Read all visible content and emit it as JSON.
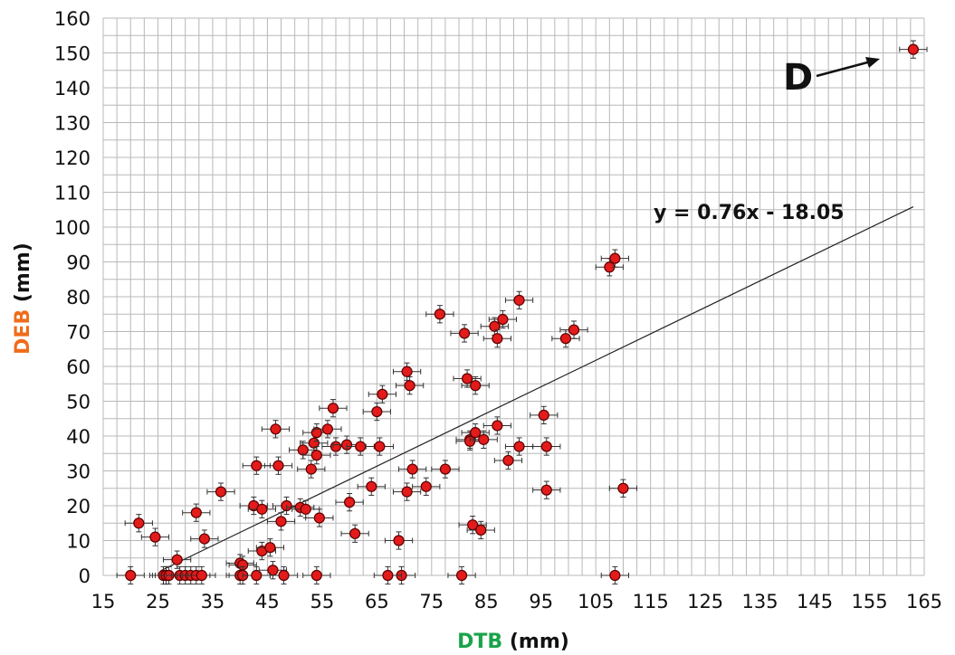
{
  "chart_data": {
    "type": "scatter",
    "x_label_colored": "DTB",
    "x_label_unit": " (mm)",
    "y_label_colored": "DEB",
    "y_label_unit": " (mm)",
    "xlim": [
      15,
      165
    ],
    "ylim": [
      0,
      160
    ],
    "x_ticks": [
      15,
      20,
      25,
      30,
      35,
      40,
      45,
      50,
      55,
      60,
      65,
      70,
      75,
      80,
      85,
      90,
      95,
      100,
      105,
      110,
      115,
      120,
      125,
      130,
      135,
      140,
      145,
      150,
      155,
      160,
      165
    ],
    "x_tick_labels": [
      "15",
      "",
      "25",
      "",
      "35",
      "",
      "45",
      "",
      "55",
      "",
      "65",
      "",
      "75",
      "",
      "85",
      "",
      "95",
      "",
      "105",
      "",
      "115",
      "",
      "125",
      "",
      "135",
      "",
      "145",
      "",
      "155",
      "",
      "165"
    ],
    "y_ticks": [
      0,
      10,
      20,
      30,
      40,
      50,
      60,
      70,
      80,
      90,
      100,
      110,
      120,
      130,
      140,
      150,
      160
    ],
    "grid": true,
    "error_bars": {
      "x": 2.5,
      "y": 2.5
    },
    "trendline": {
      "equation": "y = 0.76x - 18.05",
      "slope": 0.76,
      "intercept": -18.05,
      "x_range": [
        25.5,
        163
      ]
    },
    "annotation": {
      "text": "D",
      "points_to": [
        160,
        149
      ]
    },
    "marker_color": "#e31b1b",
    "x_label_color": "#1aa34a",
    "y_label_color": "#ef6c1a",
    "points": [
      [
        20,
        0
      ],
      [
        21.5,
        15
      ],
      [
        24.5,
        11
      ],
      [
        26,
        0
      ],
      [
        26.5,
        0
      ],
      [
        27,
        0
      ],
      [
        28.5,
        4.5
      ],
      [
        29,
        0
      ],
      [
        30,
        0
      ],
      [
        31,
        0
      ],
      [
        32,
        0
      ],
      [
        32,
        18
      ],
      [
        33,
        0
      ],
      [
        33.5,
        10.5
      ],
      [
        36.5,
        24
      ],
      [
        40,
        3.5
      ],
      [
        40.5,
        3
      ],
      [
        40,
        0
      ],
      [
        40.5,
        0
      ],
      [
        42.5,
        20
      ],
      [
        43,
        31.5
      ],
      [
        43,
        0
      ],
      [
        44,
        7
      ],
      [
        44,
        19
      ],
      [
        45.5,
        8
      ],
      [
        46,
        1.5
      ],
      [
        46.5,
        42
      ],
      [
        47,
        31.5
      ],
      [
        47.5,
        15.5
      ],
      [
        48,
        0
      ],
      [
        48.5,
        20
      ],
      [
        51,
        19.5
      ],
      [
        51.5,
        36
      ],
      [
        52,
        19
      ],
      [
        53,
        30.5
      ],
      [
        53.5,
        38
      ],
      [
        54,
        41
      ],
      [
        54,
        34.5
      ],
      [
        54,
        0
      ],
      [
        54.5,
        16.5
      ],
      [
        56,
        42
      ],
      [
        57,
        48
      ],
      [
        57.5,
        37
      ],
      [
        59.5,
        37.5
      ],
      [
        60,
        21
      ],
      [
        61,
        12
      ],
      [
        62,
        37
      ],
      [
        64,
        25.5
      ],
      [
        65,
        47
      ],
      [
        65.5,
        37
      ],
      [
        66,
        52
      ],
      [
        70.5,
        24
      ],
      [
        70.5,
        58.5
      ],
      [
        71,
        54.5
      ],
      [
        71.5,
        30.5
      ],
      [
        69,
        10
      ],
      [
        69.5,
        0
      ],
      [
        67,
        0
      ],
      [
        74,
        25.5
      ],
      [
        76.5,
        75
      ],
      [
        77.5,
        30.5
      ],
      [
        80.5,
        0
      ],
      [
        81,
        69.5
      ],
      [
        81.5,
        56.5
      ],
      [
        82,
        39
      ],
      [
        82,
        38.5
      ],
      [
        82.5,
        14.5
      ],
      [
        83,
        41
      ],
      [
        83,
        54.5
      ],
      [
        84,
        13
      ],
      [
        84.5,
        39
      ],
      [
        86.5,
        71.5
      ],
      [
        87,
        43
      ],
      [
        87,
        68
      ],
      [
        88,
        73.5
      ],
      [
        89,
        33
      ],
      [
        91,
        79
      ],
      [
        91,
        37
      ],
      [
        95.5,
        46
      ],
      [
        96,
        24.5
      ],
      [
        96,
        37
      ],
      [
        99.5,
        68
      ],
      [
        101,
        70.5
      ],
      [
        107.5,
        88.5
      ],
      [
        108.5,
        91
      ],
      [
        108.5,
        0
      ],
      [
        110,
        25
      ],
      [
        163,
        151
      ]
    ]
  }
}
